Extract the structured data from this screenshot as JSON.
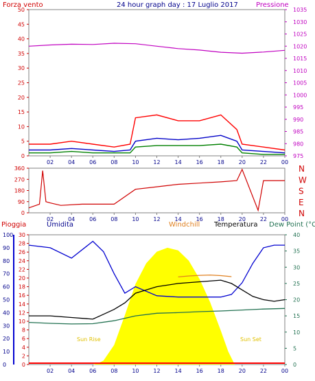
{
  "header": {
    "left": "Forza vento",
    "title": "24 hour graph day : 17 Luglio 2017",
    "right": "Pressione"
  },
  "colors": {
    "wind_gust": "#ff0000",
    "wind_avg": "#0000c8",
    "wind_low": "#008000",
    "pressure": "#c000c0",
    "direction": "#d00000",
    "humidity": "#0000d0",
    "temperature": "#000000",
    "windchill": "#e08020",
    "dewpoint": "#207050",
    "solar": "#ffff00",
    "rain": "#ff0000",
    "frame_bg": "#e8e8e8"
  },
  "chart_data": [
    {
      "id": "wind_pressure",
      "type": "line",
      "x_ticks": [
        "02",
        "04",
        "06",
        "08",
        "10",
        "12",
        "14",
        "16",
        "18",
        "20",
        "22",
        "00"
      ],
      "left_axis": {
        "label": "Forza vento",
        "ticks": [
          0,
          5,
          10,
          15,
          20,
          25,
          30,
          35,
          40,
          45,
          50
        ],
        "range": [
          0,
          50
        ]
      },
      "right_axis": {
        "label": "Pressione",
        "ticks": [
          975,
          980,
          985,
          990,
          995,
          1000,
          1005,
          1010,
          1015,
          1020,
          1025,
          1030,
          1035
        ],
        "range": [
          975,
          1035
        ]
      },
      "series": [
        {
          "name": "Pressione",
          "color_key": "pressure",
          "x": [
            0,
            2,
            4,
            6,
            8,
            10,
            12,
            14,
            16,
            18,
            20,
            22,
            24
          ],
          "y": [
            1020,
            1020.5,
            1020.8,
            1020.7,
            1021.2,
            1021,
            1020,
            1019,
            1018.4,
            1017.5,
            1017.1,
            1017.6,
            1018.3
          ]
        },
        {
          "name": "gust",
          "color_key": "wind_gust",
          "x": [
            0,
            2,
            4,
            6,
            8,
            9.5,
            10,
            12,
            14,
            16,
            18,
            19.5,
            20,
            22,
            24
          ],
          "y": [
            4,
            4,
            5,
            4,
            3,
            4,
            13,
            14,
            12,
            12,
            14,
            9,
            4,
            3,
            2
          ]
        },
        {
          "name": "avg",
          "color_key": "wind_avg",
          "x": [
            0,
            2,
            4,
            6,
            8,
            9.5,
            10,
            12,
            14,
            16,
            18,
            19.5,
            20,
            22,
            24
          ],
          "y": [
            2,
            2,
            2.5,
            2,
            1.5,
            2,
            5,
            6,
            5.5,
            6,
            7,
            5,
            2,
            1.5,
            1
          ]
        },
        {
          "name": "low",
          "color_key": "wind_low",
          "x": [
            0,
            2,
            4,
            6,
            8,
            9.5,
            10,
            12,
            14,
            16,
            18,
            19.5,
            20,
            22,
            24
          ],
          "y": [
            1,
            1,
            1.5,
            1,
            1,
            1,
            3,
            3.5,
            3.5,
            3.5,
            4,
            3,
            1,
            0.5,
            0.5
          ]
        }
      ]
    },
    {
      "id": "wind_direction",
      "type": "line",
      "x_ticks": [
        "02",
        "04",
        "06",
        "08",
        "10",
        "12",
        "14",
        "16",
        "18",
        "20",
        "22",
        "00"
      ],
      "left_axis": {
        "ticks": [
          0,
          90,
          180,
          270,
          360
        ],
        "range": [
          0,
          360
        ]
      },
      "right_axis": {
        "labels": [
          "N",
          "W",
          "S",
          "E",
          "N"
        ]
      },
      "series": [
        {
          "name": "direction",
          "color_key": "direction",
          "x": [
            0,
            1,
            1.3,
            1.6,
            2,
            3,
            5,
            7,
            8,
            10,
            12,
            14,
            16,
            18,
            19.5,
            20,
            21.5,
            22,
            24
          ],
          "y": [
            40,
            70,
            340,
            90,
            80,
            60,
            70,
            70,
            70,
            190,
            210,
            230,
            240,
            250,
            260,
            350,
            20,
            260,
            260
          ]
        }
      ]
    },
    {
      "id": "rain_hum_temp",
      "type": "line",
      "x_ticks": [
        "02",
        "04",
        "06",
        "08",
        "10",
        "12",
        "14",
        "16",
        "18",
        "20",
        "22",
        "00"
      ],
      "header_labels": {
        "rain": "Pioggia",
        "humidity": "Umidita",
        "windchill": "Windchill",
        "temperature": "Temperatura",
        "dewpoint": "Dew Point (°C"
      },
      "rain_axis": {
        "ticks": [
          0,
          2,
          4,
          6,
          8,
          10,
          12,
          14,
          16,
          18,
          20,
          22,
          24,
          26,
          28,
          30
        ],
        "range": [
          0,
          30
        ]
      },
      "humidity_axis": {
        "ticks": [
          0,
          10,
          20,
          30,
          40,
          50,
          60,
          70,
          80,
          90,
          100
        ],
        "range": [
          0,
          100
        ]
      },
      "temp_axis": {
        "ticks": [
          0,
          5,
          10,
          15,
          20,
          25,
          30,
          35,
          40
        ],
        "range": [
          0,
          40
        ]
      },
      "annotations": [
        "Sun Rise",
        "Sun Set"
      ],
      "series": [
        {
          "name": "Umidita",
          "color_key": "humidity",
          "x": [
            0,
            2,
            4,
            6,
            7,
            8,
            9,
            10,
            12,
            14,
            16,
            18,
            19,
            20,
            21,
            22,
            23,
            24
          ],
          "y": [
            92,
            90,
            82,
            95,
            87,
            70,
            55,
            60,
            53,
            52,
            52,
            52,
            54,
            63,
            78,
            90,
            92,
            92
          ]
        },
        {
          "name": "Temperatura",
          "color_key": "temperature",
          "x": [
            0,
            2,
            4,
            6,
            7,
            8,
            9,
            10,
            12,
            14,
            16,
            18,
            19,
            20,
            21,
            22,
            23,
            24
          ],
          "y": [
            15,
            15,
            14.5,
            14,
            15.5,
            17,
            19,
            22,
            24,
            25,
            25.5,
            26,
            25,
            23,
            21,
            20,
            19.5,
            20
          ]
        },
        {
          "name": "Windchill",
          "color_key": "windchill",
          "x": [
            14,
            15,
            16,
            17,
            18,
            19
          ],
          "y": [
            27,
            27.3,
            27.5,
            27.6,
            27.4,
            27.1
          ]
        },
        {
          "name": "Dew Point",
          "color_key": "dewpoint",
          "x": [
            0,
            2,
            4,
            6,
            8,
            10,
            12,
            14,
            16,
            18,
            20,
            22,
            24
          ],
          "y": [
            13,
            12.7,
            12.5,
            12.6,
            13.5,
            15,
            15.8,
            16,
            16.3,
            16.5,
            16.8,
            17.1,
            17.3
          ]
        },
        {
          "name": "solar",
          "color_key": "solar",
          "x": [
            6,
            6.5,
            7,
            8,
            9,
            10,
            11,
            12,
            13,
            14,
            15,
            16,
            17,
            18,
            18.7,
            19.3
          ],
          "y": [
            0,
            1,
            3,
            15,
            38,
            62,
            78,
            87,
            90,
            88,
            80,
            66,
            48,
            26,
            10,
            0
          ]
        }
      ]
    }
  ]
}
